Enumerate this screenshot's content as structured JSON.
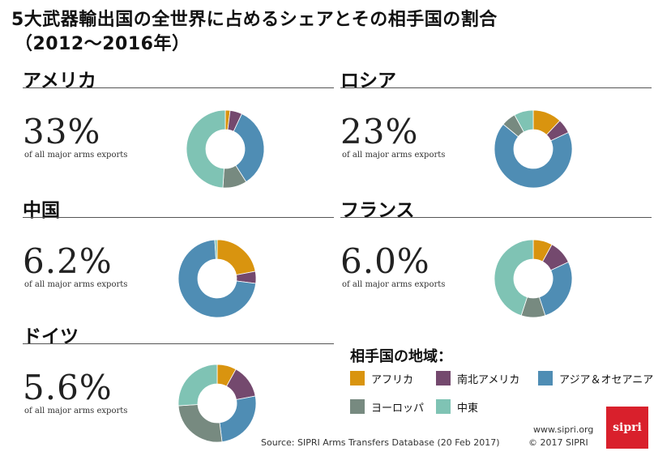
{
  "title": {
    "line1": "5大武器輸出国の全世界に占めるシェアとその相手国の割合",
    "line2": "（2012～2016年）"
  },
  "subtitle_text": "of all major arms exports",
  "colors": {
    "africa": "#d9940f",
    "south_north_america": "#74496e",
    "asia_oceania": "#4f8db4",
    "europe": "#778a80",
    "middle_east": "#7fc3b4"
  },
  "chart_data": [
    {
      "type": "pie",
      "title": "アメリカ",
      "share": "33%",
      "categories": [
        "アフリカ",
        "南北アメリカ",
        "アジア＆オセアニア",
        "ヨーロッパ",
        "中東"
      ],
      "values": [
        2,
        5,
        34,
        10,
        49
      ]
    },
    {
      "type": "pie",
      "title": "ロシア",
      "share": "23%",
      "categories": [
        "アフリカ",
        "南北アメリカ",
        "アジア＆オセアニア",
        "ヨーロッパ",
        "中東"
      ],
      "values": [
        12,
        6,
        68,
        6,
        8
      ]
    },
    {
      "type": "pie",
      "title": "中国",
      "share": "6.2%",
      "categories": [
        "アフリカ",
        "南北アメリカ",
        "アジア＆オセアニア",
        "ヨーロッパ",
        "中東"
      ],
      "values": [
        22,
        5,
        72,
        0,
        1
      ]
    },
    {
      "type": "pie",
      "title": "フランス",
      "share": "6.0%",
      "categories": [
        "アフリカ",
        "南北アメリカ",
        "アジア＆オセアニア",
        "ヨーロッパ",
        "中東"
      ],
      "values": [
        8,
        10,
        27,
        10,
        45
      ]
    },
    {
      "type": "pie",
      "title": "ドイツ",
      "share": "5.6%",
      "categories": [
        "アフリカ",
        "南北アメリカ",
        "アジア＆オセアニア",
        "ヨーロッパ",
        "中東"
      ],
      "values": [
        8,
        14,
        26,
        26,
        26
      ]
    }
  ],
  "legend": {
    "title": "相手国の地域：",
    "items": [
      {
        "label": "アフリカ",
        "color": "#d9940f"
      },
      {
        "label": "南北アメリカ",
        "color": "#74496e"
      },
      {
        "label": "アジア＆オセアニア",
        "color": "#4f8db4"
      },
      {
        "label": "ヨーロッパ",
        "color": "#778a80"
      },
      {
        "label": "中東",
        "color": "#7fc3b4"
      }
    ]
  },
  "footer": {
    "source": "Source: SIPRI Arms Transfers Database (20 Feb 2017)",
    "site": "www.sipri.org",
    "copyright": "© 2017 SIPRI",
    "logo": "sipri"
  }
}
